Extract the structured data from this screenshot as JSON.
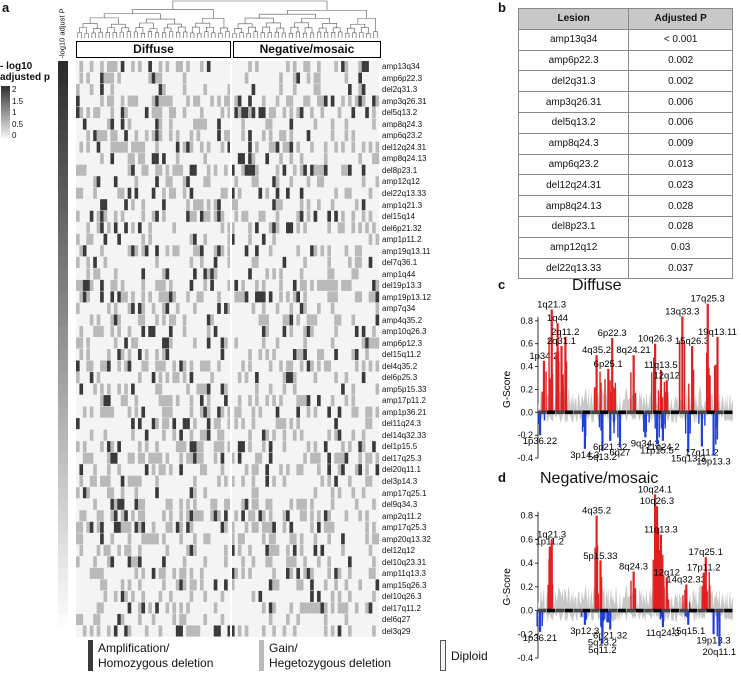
{
  "panels": {
    "a": "a",
    "b": "b",
    "c": "c",
    "d": "d"
  },
  "heatmap": {
    "side_header": "-log10 adjust P",
    "groups": [
      "Diffuse",
      "Negative/mosaic"
    ],
    "colorbar": {
      "title": "- log10\nadjusted p",
      "ticks": [
        "2",
        "1.5",
        "1",
        "0.5",
        "0"
      ]
    },
    "rows": [
      "amp13q34",
      "amp6p22.3",
      "del2q31.3",
      "amp3q26.31",
      "del5q13.2",
      "amp8q24.3",
      "amp6q23.2",
      "del12q24.31",
      "amp8q24.13",
      "del8p23.1",
      "amp12q12",
      "del22q13.33",
      "amp1q21.3",
      "del15q14",
      "del6p21.32",
      "amp1p11.2",
      "amp19q13.11",
      "del7q36.1",
      "amp1q44",
      "del19p13.3",
      "amp19p13.12",
      "amp7q34",
      "amp4q35.2",
      "amp10q26.3",
      "amp6p12.3",
      "del15q11.2",
      "del4q35.2",
      "del6p25.3",
      "amp5p15.33",
      "amp17p11.2",
      "amp1p36.21",
      "del11q24.3",
      "del14q32.33",
      "del1p15.5",
      "del17q25.3",
      "del20q11.1",
      "del3p14.3",
      "amp17q25.1",
      "del9q34.3",
      "amp2q11.2",
      "amp17q25.3",
      "amp20q13.32",
      "del12q12",
      "del10q23.31",
      "amp11q13.3",
      "amp15q26.3",
      "del10q26.3",
      "del17q11.2",
      "del6q27",
      "del3q29"
    ],
    "legend": {
      "amp": "Amplification/\nHomozygous deletion",
      "gain": "Gain/\nHegetozygous deletion",
      "diploid": "Diploid"
    },
    "colors": {
      "amp": "#3a3a3a",
      "gain": "#b9b9b9",
      "diploid": "#f4f4f4"
    }
  },
  "table": {
    "headers": [
      "Lesion",
      "Adjusted P"
    ],
    "rows": [
      [
        "amp13q34",
        "< 0.001"
      ],
      [
        "amp6p22.3",
        "0.002"
      ],
      [
        "del2q31.3",
        "0.002"
      ],
      [
        "amp3q26.31",
        "0.006"
      ],
      [
        "del5q13.2",
        "0.006"
      ],
      [
        "amp8q24.3",
        "0.009"
      ],
      [
        "amp6q23.2",
        "0.013"
      ],
      [
        "del12q24.31",
        "0.023"
      ],
      [
        "amp8q24.13",
        "0.028"
      ],
      [
        "del8p23.1",
        "0.028"
      ],
      [
        "amp12q12",
        "0.03"
      ],
      [
        "del22q13.33",
        "0.037"
      ]
    ]
  },
  "chart_data": [
    {
      "type": "area",
      "title": "Diffuse",
      "ylabel": "G-Score",
      "ylim": [
        -0.4,
        1.0
      ],
      "yticks": [
        "0.8",
        "0.6",
        "0.4",
        "0.2",
        "0.0",
        "-0.2",
        "-0.4"
      ],
      "peaks": [
        {
          "label": "1p34.2",
          "pos": 0.03,
          "value": 0.45
        },
        {
          "label": "1q21.3",
          "pos": 0.07,
          "value": 0.9
        },
        {
          "label": "1q44",
          "pos": 0.1,
          "value": 0.78
        },
        {
          "label": "2q11.2",
          "pos": 0.14,
          "value": 0.66
        },
        {
          "label": "2q31.1",
          "pos": 0.12,
          "value": 0.58
        },
        {
          "label": "4q35.2",
          "pos": 0.3,
          "value": 0.5
        },
        {
          "label": "6p22.3",
          "pos": 0.38,
          "value": 0.65
        },
        {
          "label": "6p25.1",
          "pos": 0.36,
          "value": 0.38
        },
        {
          "label": "8q24.21",
          "pos": 0.49,
          "value": 0.5
        },
        {
          "label": "10q26.3",
          "pos": 0.6,
          "value": 0.6
        },
        {
          "label": "11q13.5",
          "pos": 0.63,
          "value": 0.37
        },
        {
          "label": "12q12",
          "pos": 0.66,
          "value": 0.28
        },
        {
          "label": "13q33.3",
          "pos": 0.74,
          "value": 0.84
        },
        {
          "label": "15q26.3",
          "pos": 0.79,
          "value": 0.58
        },
        {
          "label": "17q25.3",
          "pos": 0.87,
          "value": 0.95
        },
        {
          "label": "19q13.11",
          "pos": 0.92,
          "value": 0.66
        },
        {
          "label": "1p36.22",
          "pos": 0.01,
          "value": -0.2
        },
        {
          "label": "3p14.3",
          "pos": 0.24,
          "value": -0.32
        },
        {
          "label": "5q13.2",
          "pos": 0.33,
          "value": -0.34
        },
        {
          "label": "6p21.32",
          "pos": 0.37,
          "value": -0.25
        },
        {
          "label": "6q27",
          "pos": 0.42,
          "value": -0.3
        },
        {
          "label": "9q34.3",
          "pos": 0.55,
          "value": -0.22
        },
        {
          "label": "11q24.2",
          "pos": 0.64,
          "value": -0.25
        },
        {
          "label": "11p15.5",
          "pos": 0.61,
          "value": -0.28
        },
        {
          "label": "15q13.3",
          "pos": 0.77,
          "value": -0.35
        },
        {
          "label": "17q11.2",
          "pos": 0.84,
          "value": -0.3
        },
        {
          "label": "19p13.3",
          "pos": 0.9,
          "value": -0.38
        }
      ]
    },
    {
      "type": "area",
      "title": "Negative/mosaic",
      "ylabel": "G-Score",
      "ylim": [
        -0.4,
        1.0
      ],
      "yticks": [
        "0.8",
        "0.6",
        "0.4",
        "0.2",
        "0.0",
        "-0.2",
        "-0.4"
      ],
      "peaks": [
        {
          "label": "1p11.2",
          "pos": 0.06,
          "value": 0.54
        },
        {
          "label": "1q21.3",
          "pos": 0.07,
          "value": 0.6
        },
        {
          "label": "4q35.2",
          "pos": 0.3,
          "value": 0.8
        },
        {
          "label": "5p15.33",
          "pos": 0.32,
          "value": 0.42
        },
        {
          "label": "8q24.3",
          "pos": 0.49,
          "value": 0.33
        },
        {
          "label": "10q24.1",
          "pos": 0.6,
          "value": 0.98
        },
        {
          "label": "10q26.3",
          "pos": 0.61,
          "value": 0.88
        },
        {
          "label": "11q13.3",
          "pos": 0.63,
          "value": 0.64
        },
        {
          "label": "12q12",
          "pos": 0.66,
          "value": 0.28
        },
        {
          "label": "14q32.33",
          "pos": 0.76,
          "value": 0.22
        },
        {
          "label": "17q25.1",
          "pos": 0.86,
          "value": 0.45
        },
        {
          "label": "17p11.2",
          "pos": 0.85,
          "value": 0.32
        },
        {
          "label": "1p36.21",
          "pos": 0.01,
          "value": -0.18
        },
        {
          "label": "3p12.3",
          "pos": 0.24,
          "value": -0.12
        },
        {
          "label": "5q13.2",
          "pos": 0.33,
          "value": -0.22
        },
        {
          "label": "6p21.32",
          "pos": 0.37,
          "value": -0.16
        },
        {
          "label": "5q11.2",
          "pos": 0.33,
          "value": -0.28
        },
        {
          "label": "11q24.3",
          "pos": 0.64,
          "value": -0.14
        },
        {
          "label": "15q15.1",
          "pos": 0.77,
          "value": -0.12
        },
        {
          "label": "19p13.3",
          "pos": 0.9,
          "value": -0.2
        },
        {
          "label": "20q11.1",
          "pos": 0.93,
          "value": -0.3
        }
      ]
    }
  ]
}
